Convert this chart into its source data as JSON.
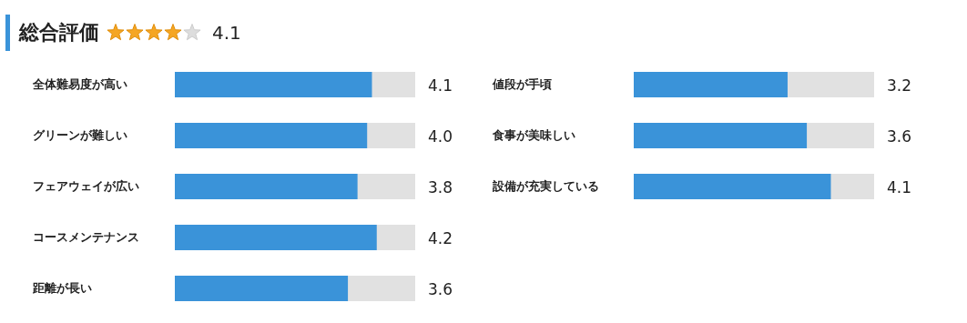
{
  "chart_data": [
    {
      "type": "bar",
      "orientation": "horizontal",
      "title": "総合評価",
      "annotations": [
        "4.1"
      ],
      "categories": [
        "全体難易度が高い",
        "グリーンが難しい",
        "フェアウェイが広い",
        "コースメンテナンス",
        "距離が長い"
      ],
      "values": [
        4.1,
        4.0,
        3.8,
        4.2,
        3.6
      ],
      "value_labels": [
        "4.1",
        "4.0",
        "3.8",
        "4.2",
        "3.6"
      ],
      "color": "#3a93d9",
      "xlim": [
        0,
        5
      ],
      "tick_labels": "y"
    },
    {
      "type": "bar",
      "orientation": "horizontal",
      "categories": [
        "値段が手頃",
        "食事が美味しい",
        "設備が充実している"
      ],
      "values": [
        3.2,
        3.6,
        4.1
      ],
      "value_labels": [
        "3.2",
        "3.6",
        "4.1"
      ],
      "color": "#3a93d9",
      "xlim": [
        0,
        5
      ],
      "tick_labels": "y"
    }
  ]
}
